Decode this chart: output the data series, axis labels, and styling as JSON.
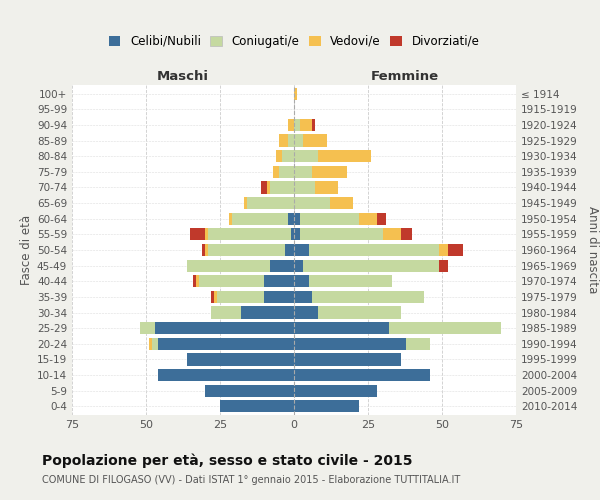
{
  "age_groups": [
    "0-4",
    "5-9",
    "10-14",
    "15-19",
    "20-24",
    "25-29",
    "30-34",
    "35-39",
    "40-44",
    "45-49",
    "50-54",
    "55-59",
    "60-64",
    "65-69",
    "70-74",
    "75-79",
    "80-84",
    "85-89",
    "90-94",
    "95-99",
    "100+"
  ],
  "birth_years": [
    "2010-2014",
    "2005-2009",
    "2000-2004",
    "1995-1999",
    "1990-1994",
    "1985-1989",
    "1980-1984",
    "1975-1979",
    "1970-1974",
    "1965-1969",
    "1960-1964",
    "1955-1959",
    "1950-1954",
    "1945-1949",
    "1940-1944",
    "1935-1939",
    "1930-1934",
    "1925-1929",
    "1920-1924",
    "1915-1919",
    "≤ 1914"
  ],
  "males": {
    "celibi": [
      25,
      30,
      46,
      36,
      46,
      47,
      18,
      10,
      10,
      8,
      3,
      1,
      2,
      0,
      0,
      0,
      0,
      0,
      0,
      0,
      0
    ],
    "coniugati": [
      0,
      0,
      0,
      0,
      2,
      5,
      10,
      16,
      22,
      28,
      26,
      28,
      19,
      16,
      8,
      5,
      4,
      2,
      0,
      0,
      0
    ],
    "vedovi": [
      0,
      0,
      0,
      0,
      1,
      0,
      0,
      1,
      1,
      0,
      1,
      1,
      1,
      1,
      1,
      2,
      2,
      3,
      2,
      0,
      0
    ],
    "divorziati": [
      0,
      0,
      0,
      0,
      0,
      0,
      0,
      1,
      1,
      0,
      1,
      5,
      0,
      0,
      2,
      0,
      0,
      0,
      0,
      0,
      0
    ]
  },
  "females": {
    "nubili": [
      22,
      28,
      46,
      36,
      38,
      32,
      8,
      6,
      5,
      3,
      5,
      2,
      2,
      0,
      0,
      0,
      0,
      0,
      0,
      0,
      0
    ],
    "coniugate": [
      0,
      0,
      0,
      0,
      8,
      38,
      28,
      38,
      28,
      46,
      44,
      28,
      20,
      12,
      7,
      6,
      8,
      3,
      2,
      0,
      0
    ],
    "vedove": [
      0,
      0,
      0,
      0,
      0,
      0,
      0,
      0,
      0,
      0,
      3,
      6,
      6,
      8,
      8,
      12,
      18,
      8,
      4,
      0,
      1
    ],
    "divorziate": [
      0,
      0,
      0,
      0,
      0,
      0,
      0,
      0,
      0,
      3,
      5,
      4,
      3,
      0,
      0,
      0,
      0,
      0,
      1,
      0,
      0
    ]
  },
  "colors": {
    "celibi": "#3d6e99",
    "coniugati": "#c5d9a0",
    "vedovi": "#f5c050",
    "divorziati": "#c0392b"
  },
  "xlim": 75,
  "title": "Popolazione per età, sesso e stato civile - 2015",
  "subtitle": "COMUNE DI FILOGASO (VV) - Dati ISTAT 1° gennaio 2015 - Elaborazione TUTTITALIA.IT",
  "xlabel_left": "Maschi",
  "xlabel_right": "Femmine",
  "ylabel_left": "Fasce di età",
  "ylabel_right": "Anni di nascita",
  "legend_labels": [
    "Celibi/Nubili",
    "Coniugati/e",
    "Vedovi/e",
    "Divorziati/e"
  ],
  "bg_color": "#f0f0eb",
  "plot_bg": "#ffffff"
}
